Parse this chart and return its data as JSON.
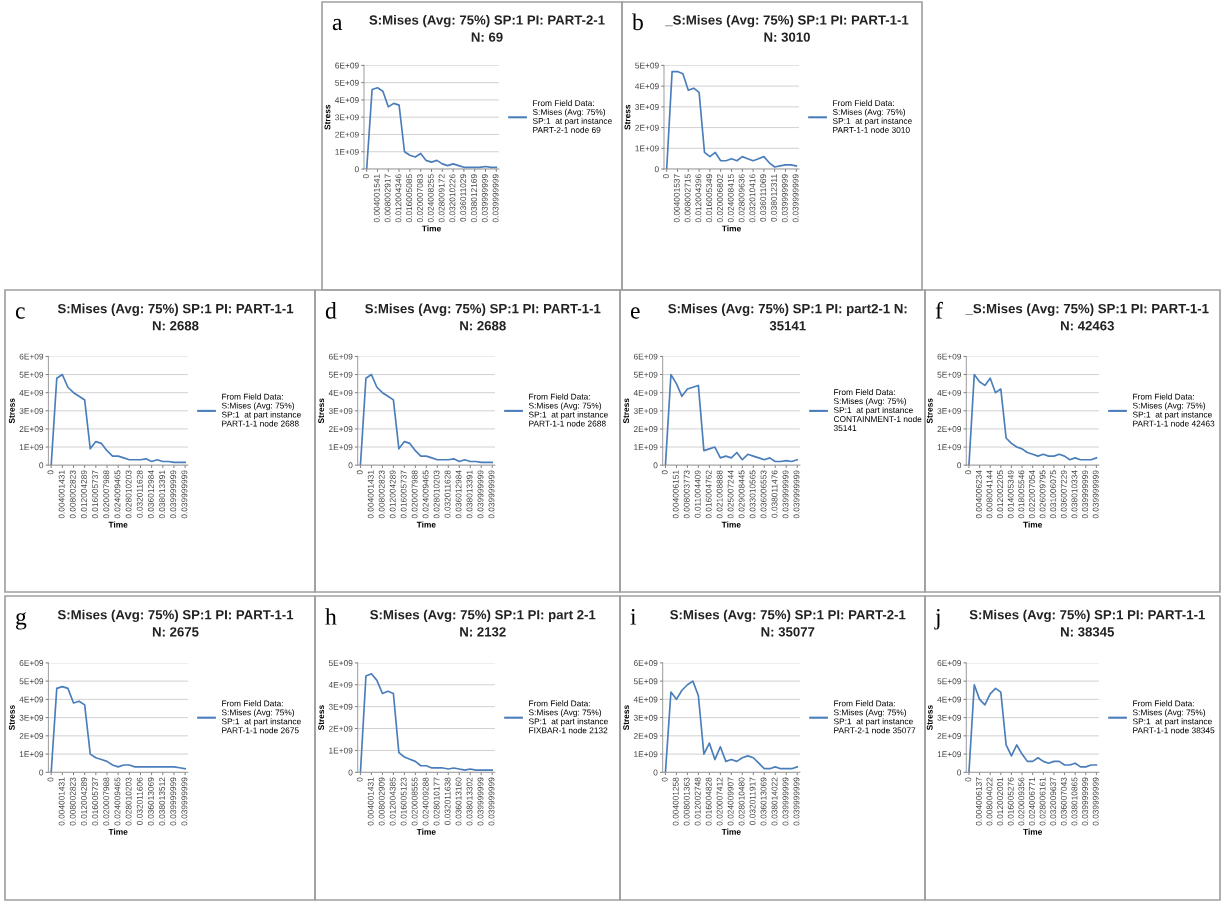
{
  "chart_data": [
    {
      "type": "line",
      "title": "S:Mises (Avg: 75%) SP:1 PI: PART-2-1\nN: 69",
      "xlabel": "Time",
      "ylabel": "Stress",
      "annotations": [
        "a"
      ],
      "grid": "y",
      "legend": "right",
      "marker": "none",
      "line_style": "solid",
      "ylim": [
        0,
        6000000000.0
      ],
      "yticks": [
        {
          "value": 0,
          "label": "0"
        },
        {
          "value": 1000000000.0,
          "label": "1E+09"
        },
        {
          "value": 2000000000.0,
          "label": "2E+09"
        },
        {
          "value": 3000000000.0,
          "label": "3E+09"
        },
        {
          "value": 4000000000.0,
          "label": "4E+09"
        },
        {
          "value": 5000000000.0,
          "label": "5E+09"
        },
        {
          "value": 6000000000.0,
          "label": "6E+09"
        }
      ],
      "categories": [
        "0",
        null,
        "0.004001541",
        null,
        "0.008002917",
        null,
        "0.012004346",
        null,
        "0.016005085",
        null,
        "0.020007083",
        null,
        "0.024008255",
        null,
        "0.028009172",
        null,
        "0.032010226",
        null,
        "0.036011029",
        null,
        "0.038012169",
        null,
        "0.039999999",
        null,
        "0.039999999"
      ],
      "series": [
        {
          "name": "From Field Data:\nS:Mises (Avg: 75%)\nSP:1  at part instance\nPART-2-1 node 69",
          "color": "#4a7ebb",
          "values": [
            0,
            4600000000.0,
            4700000000.0,
            4500000000.0,
            3600000000.0,
            3800000000.0,
            3700000000.0,
            1000000000.0,
            800000000.0,
            700000000.0,
            900000000.0,
            500000000.0,
            400000000.0,
            500000000.0,
            300000000.0,
            200000000.0,
            300000000.0,
            200000000.0,
            100000000.0,
            100000000.0,
            100000000.0,
            100000000.0,
            150000000.0,
            100000000.0,
            100000000.0
          ]
        }
      ]
    },
    {
      "type": "line",
      "title": "_S:Mises (Avg: 75%) SP:1 PI: PART-1-1\nN: 3010",
      "xlabel": "Time",
      "ylabel": "Stress",
      "annotations": [
        "b"
      ],
      "grid": "y",
      "legend": "right",
      "marker": "none",
      "line_style": "solid",
      "ylim": [
        0,
        5000000000.0
      ],
      "yticks": [
        {
          "value": 0,
          "label": "0"
        },
        {
          "value": 1000000000.0,
          "label": "1E+09"
        },
        {
          "value": 2000000000.0,
          "label": "2E+09"
        },
        {
          "value": 3000000000.0,
          "label": "3E+09"
        },
        {
          "value": 4000000000.0,
          "label": "4E+09"
        },
        {
          "value": 5000000000.0,
          "label": "5E+09"
        }
      ],
      "categories": [
        "0",
        null,
        "0.004001537",
        null,
        "0.008002715",
        null,
        "0.012004396",
        null,
        "0.016005349",
        null,
        "0.020006802",
        null,
        "0.024008415",
        null,
        "0.028009636",
        null,
        "0.032010416",
        null,
        "0.036011069",
        null,
        "0.038012311",
        null,
        "0.039999999",
        null,
        "0.039999999"
      ],
      "series": [
        {
          "name": "From Field Data:\nS:Mises (Avg: 75%)\nSP:1  at part instance\nPART-1-1 node 3010",
          "color": "#4a7ebb",
          "values": [
            0,
            4700000000.0,
            4700000000.0,
            4600000000.0,
            3800000000.0,
            3900000000.0,
            3700000000.0,
            800000000.0,
            600000000.0,
            800000000.0,
            400000000.0,
            400000000.0,
            500000000.0,
            400000000.0,
            600000000.0,
            500000000.0,
            400000000.0,
            500000000.0,
            600000000.0,
            300000000.0,
            100000000.0,
            150000000.0,
            200000000.0,
            200000000.0,
            150000000.0
          ]
        }
      ]
    },
    {
      "type": "line",
      "title": "S:Mises (Avg: 75%) SP:1 PI: PART-1-1\nN: 2688",
      "xlabel": "Time",
      "ylabel": "Stress",
      "annotations": [
        "c"
      ],
      "grid": "y",
      "legend": "right",
      "marker": "none",
      "line_style": "solid",
      "ylim": [
        0,
        6000000000.0
      ],
      "yticks": [
        {
          "value": 0,
          "label": "0"
        },
        {
          "value": 1000000000.0,
          "label": "1E+09"
        },
        {
          "value": 2000000000.0,
          "label": "2E+09"
        },
        {
          "value": 3000000000.0,
          "label": "3E+09"
        },
        {
          "value": 4000000000.0,
          "label": "4E+09"
        },
        {
          "value": 5000000000.0,
          "label": "5E+09"
        },
        {
          "value": 6000000000.0,
          "label": "6E+09"
        }
      ],
      "categories": [
        "0",
        null,
        "0.004001431",
        null,
        "0.008002823",
        null,
        "0.012004289",
        null,
        "0.016005737",
        null,
        "0.020007988",
        null,
        "0.024009465",
        null,
        "0.028010203",
        null,
        "0.032011628",
        null,
        "0.036012984",
        null,
        "0.038013391",
        null,
        "0.039999999",
        null,
        "0.039999999"
      ],
      "series": [
        {
          "name": "From Field Data:\nS:Mises (Avg: 75%)\nSP:1  at part instance\nPART-1-1 node 2688",
          "color": "#4a7ebb",
          "values": [
            0,
            4800000000.0,
            5000000000.0,
            4300000000.0,
            4000000000.0,
            3800000000.0,
            3600000000.0,
            900000000.0,
            1300000000.0,
            1200000000.0,
            800000000.0,
            500000000.0,
            500000000.0,
            400000000.0,
            300000000.0,
            300000000.0,
            300000000.0,
            350000000.0,
            200000000.0,
            300000000.0,
            200000000.0,
            200000000.0,
            150000000.0,
            150000000.0,
            150000000.0
          ]
        }
      ]
    },
    {
      "type": "line",
      "title": "S:Mises (Avg: 75%) SP:1 PI: PART-1-1\nN: 2688",
      "xlabel": "Time",
      "ylabel": "Stress",
      "annotations": [
        "d"
      ],
      "grid": "y",
      "legend": "right",
      "marker": "none",
      "line_style": "solid",
      "ylim": [
        0,
        6000000000.0
      ],
      "yticks": [
        {
          "value": 0,
          "label": "0"
        },
        {
          "value": 1000000000.0,
          "label": "1E+09"
        },
        {
          "value": 2000000000.0,
          "label": "2E+09"
        },
        {
          "value": 3000000000.0,
          "label": "3E+09"
        },
        {
          "value": 4000000000.0,
          "label": "4E+09"
        },
        {
          "value": 5000000000.0,
          "label": "5E+09"
        },
        {
          "value": 6000000000.0,
          "label": "6E+09"
        }
      ],
      "categories": [
        "0",
        null,
        "0.004001431",
        null,
        "0.008002823",
        null,
        "0.012004289",
        null,
        "0.016005737",
        null,
        "0.020007988",
        null,
        "0.024009465",
        null,
        "0.028010203",
        null,
        "0.032011628",
        null,
        "0.036012984",
        null,
        "0.038013391",
        null,
        "0.039999999",
        null,
        "0.039999999"
      ],
      "series": [
        {
          "name": "From Field Data:\nS:Mises (Avg: 75%)\nSP:1  at part instance\nPART-1-1 node 2688",
          "color": "#4a7ebb",
          "values": [
            0,
            4800000000.0,
            5000000000.0,
            4300000000.0,
            4000000000.0,
            3800000000.0,
            3600000000.0,
            900000000.0,
            1300000000.0,
            1200000000.0,
            800000000.0,
            500000000.0,
            500000000.0,
            400000000.0,
            300000000.0,
            300000000.0,
            300000000.0,
            350000000.0,
            200000000.0,
            300000000.0,
            200000000.0,
            200000000.0,
            150000000.0,
            150000000.0,
            150000000.0
          ]
        }
      ]
    },
    {
      "type": "line",
      "title": "S:Mises (Avg: 75%) SP:1 PI: part2-1 N:\n35141",
      "xlabel": "Time",
      "ylabel": "Stress",
      "annotations": [
        "e"
      ],
      "grid": "y",
      "legend": "right",
      "marker": "none",
      "line_style": "solid",
      "ylim": [
        0,
        6000000000.0
      ],
      "yticks": [
        {
          "value": 0,
          "label": "0"
        },
        {
          "value": 1000000000.0,
          "label": "1E+09"
        },
        {
          "value": 2000000000.0,
          "label": "2E+09"
        },
        {
          "value": 3000000000.0,
          "label": "3E+09"
        },
        {
          "value": 4000000000.0,
          "label": "4E+09"
        },
        {
          "value": 5000000000.0,
          "label": "5E+09"
        },
        {
          "value": 6000000000.0,
          "label": "6E+09"
        }
      ],
      "categories": [
        "0",
        null,
        "0.004006151",
        null,
        "0.008003773",
        null,
        "0.011004409",
        null,
        "0.016004762",
        null,
        "0.021008888",
        null,
        "0.025007244",
        null,
        "0.029008445",
        null,
        "0.033010565",
        null,
        "0.036006553",
        null,
        "0.038011476",
        null,
        "0.039999999",
        null,
        "0.039999999"
      ],
      "series": [
        {
          "name": "From Field Data:\nS:Mises (Avg: 75%)\nSP:1  at part instance\nCONTAINMENT-1 node\n35141",
          "color": "#4a7ebb",
          "values": [
            0,
            5000000000.0,
            4500000000.0,
            3800000000.0,
            4200000000.0,
            4300000000.0,
            4400000000.0,
            800000000.0,
            900000000.0,
            1000000000.0,
            400000000.0,
            500000000.0,
            400000000.0,
            700000000.0,
            300000000.0,
            600000000.0,
            500000000.0,
            400000000.0,
            300000000.0,
            400000000.0,
            200000000.0,
            200000000.0,
            250000000.0,
            200000000.0,
            300000000.0
          ]
        }
      ]
    },
    {
      "type": "line",
      "title": "_S:Mises (Avg: 75%) SP:1 PI: PART-1-1\nN: 42463",
      "xlabel": "Time",
      "ylabel": "Stress",
      "annotations": [
        "f"
      ],
      "grid": "y",
      "legend": "right",
      "marker": "none",
      "line_style": "solid",
      "ylim": [
        0,
        6000000000.0
      ],
      "yticks": [
        {
          "value": 0,
          "label": "0"
        },
        {
          "value": 1000000000.0,
          "label": "1E+09"
        },
        {
          "value": 2000000000.0,
          "label": "2E+09"
        },
        {
          "value": 3000000000.0,
          "label": "3E+09"
        },
        {
          "value": 4000000000.0,
          "label": "4E+09"
        },
        {
          "value": 5000000000.0,
          "label": "5E+09"
        },
        {
          "value": 6000000000.0,
          "label": "6E+09"
        }
      ],
      "categories": [
        "0",
        null,
        "0.004006234",
        null,
        "0.008004144",
        null,
        "0.012002205",
        null,
        "0.014005349",
        null,
        "0.018005546",
        null,
        "0.022007054",
        null,
        "0.026009795",
        null,
        "0.031006075",
        null,
        "0.036007229",
        null,
        "0.038010334",
        null,
        "0.039999999",
        null,
        "0.039999999"
      ],
      "series": [
        {
          "name": "From Field Data:\nS:Mises (Avg: 75%)\nSP:1  at part instance\nPART-1-1 node 42463",
          "color": "#4a7ebb",
          "values": [
            0,
            5000000000.0,
            4600000000.0,
            4400000000.0,
            4800000000.0,
            4000000000.0,
            4200000000.0,
            1500000000.0,
            1200000000.0,
            1000000000.0,
            900000000.0,
            700000000.0,
            600000000.0,
            500000000.0,
            600000000.0,
            500000000.0,
            500000000.0,
            600000000.0,
            500000000.0,
            300000000.0,
            400000000.0,
            300000000.0,
            300000000.0,
            300000000.0,
            400000000.0
          ]
        }
      ]
    },
    {
      "type": "line",
      "title": "S:Mises (Avg: 75%) SP:1 PI: PART-1-1\nN: 2675",
      "xlabel": "Time",
      "ylabel": "Stress",
      "annotations": [
        "g"
      ],
      "grid": "y",
      "legend": "right",
      "marker": "none",
      "line_style": "solid",
      "ylim": [
        0,
        6000000000.0
      ],
      "yticks": [
        {
          "value": 0,
          "label": "0"
        },
        {
          "value": 1000000000.0,
          "label": "1E+09"
        },
        {
          "value": 2000000000.0,
          "label": "2E+09"
        },
        {
          "value": 3000000000.0,
          "label": "3E+09"
        },
        {
          "value": 4000000000.0,
          "label": "4E+09"
        },
        {
          "value": 5000000000.0,
          "label": "5E+09"
        },
        {
          "value": 6000000000.0,
          "label": "6E+09"
        }
      ],
      "categories": [
        "0",
        null,
        "0.004001431",
        null,
        "0.008002823",
        null,
        "0.012004289",
        null,
        "0.016005737",
        null,
        "0.020007988",
        null,
        "0.024009465",
        null,
        "0.028010203",
        null,
        "0.032011606",
        null,
        "0.036013069",
        null,
        "0.038013512",
        null,
        "0.039999999",
        null,
        "0.039999999"
      ],
      "series": [
        {
          "name": "From Field Data:\nS:Mises (Avg: 75%)\nSP:1  at part instance\nPART-1-1 node 2675",
          "color": "#4a7ebb",
          "values": [
            0,
            4600000000.0,
            4700000000.0,
            4600000000.0,
            3800000000.0,
            3900000000.0,
            3700000000.0,
            1000000000.0,
            800000000.0,
            700000000.0,
            600000000.0,
            400000000.0,
            300000000.0,
            400000000.0,
            400000000.0,
            300000000.0,
            300000000.0,
            300000000.0,
            300000000.0,
            300000000.0,
            300000000.0,
            300000000.0,
            300000000.0,
            250000000.0,
            200000000.0
          ]
        }
      ]
    },
    {
      "type": "line",
      "title": "S:Mises (Avg: 75%) SP:1 PI: part 2-1\nN: 2132",
      "xlabel": "Time",
      "ylabel": "Stress",
      "annotations": [
        "h"
      ],
      "grid": "y",
      "legend": "right",
      "marker": "none",
      "line_style": "solid",
      "ylim": [
        0,
        5000000000.0
      ],
      "yticks": [
        {
          "value": 0,
          "label": "0"
        },
        {
          "value": 1000000000.0,
          "label": "1E+09"
        },
        {
          "value": 2000000000.0,
          "label": "2E+09"
        },
        {
          "value": 3000000000.0,
          "label": "3E+09"
        },
        {
          "value": 4000000000.0,
          "label": "4E+09"
        },
        {
          "value": 5000000000.0,
          "label": "5E+09"
        }
      ],
      "categories": [
        "0",
        null,
        "0.004001431",
        null,
        "0.008002909",
        null,
        "0.012004385",
        null,
        "0.016005123",
        null,
        "0.020008555",
        null,
        "0.024009288",
        null,
        "0.028010177",
        null,
        "0.032011638",
        null,
        "0.036013160",
        null,
        "0.038013302",
        null,
        "0.039999999",
        null,
        "0.039999999"
      ],
      "series": [
        {
          "name": "From Field Data:\nS:Mises (Avg: 75%)\nSP:1  at part instance\nFIXBAR-1 node 2132",
          "color": "#4a7ebb",
          "values": [
            0,
            4400000000.0,
            4500000000.0,
            4200000000.0,
            3600000000.0,
            3700000000.0,
            3600000000.0,
            900000000.0,
            700000000.0,
            600000000.0,
            500000000.0,
            300000000.0,
            300000000.0,
            200000000.0,
            200000000.0,
            200000000.0,
            150000000.0,
            200000000.0,
            150000000.0,
            100000000.0,
            150000000.0,
            100000000.0,
            100000000.0,
            100000000.0,
            100000000.0
          ]
        }
      ]
    },
    {
      "type": "line",
      "title": "S:Mises (Avg: 75%) SP:1 PI: PART-2-1\nN: 35077",
      "xlabel": "Time",
      "ylabel": "Stress",
      "annotations": [
        "i"
      ],
      "grid": "y",
      "legend": "right",
      "marker": "none",
      "line_style": "solid",
      "ylim": [
        0,
        6000000000.0
      ],
      "yticks": [
        {
          "value": 0,
          "label": "0"
        },
        {
          "value": 1000000000.0,
          "label": "1E+09"
        },
        {
          "value": 2000000000.0,
          "label": "2E+09"
        },
        {
          "value": 3000000000.0,
          "label": "3E+09"
        },
        {
          "value": 4000000000.0,
          "label": "4E+09"
        },
        {
          "value": 5000000000.0,
          "label": "5E+09"
        },
        {
          "value": 6000000000.0,
          "label": "6E+09"
        }
      ],
      "categories": [
        "0",
        null,
        "0.004001258",
        null,
        "0.008001363",
        null,
        "0.012002748",
        null,
        "0.016004828",
        null,
        "0.020007412",
        null,
        "0.024009907",
        null,
        "0.028010480",
        null,
        "0.032011917",
        null,
        "0.036013069",
        null,
        "0.038014022",
        null,
        "0.039999999",
        null,
        "0.039999999"
      ],
      "series": [
        {
          "name": "From Field Data:\nS:Mises (Avg: 75%)\nSP:1  at part instance\nPART-2-1 node 35077",
          "color": "#4a7ebb",
          "values": [
            0,
            4400000000.0,
            4000000000.0,
            4500000000.0,
            4800000000.0,
            5000000000.0,
            4200000000.0,
            1000000000.0,
            1600000000.0,
            700000000.0,
            1400000000.0,
            600000000.0,
            700000000.0,
            600000000.0,
            800000000.0,
            900000000.0,
            800000000.0,
            500000000.0,
            200000000.0,
            200000000.0,
            300000000.0,
            200000000.0,
            200000000.0,
            200000000.0,
            300000000.0
          ]
        }
      ]
    },
    {
      "type": "line",
      "title": "S:Mises (Avg: 75%) SP:1 PI: PART-1-1\nN: 38345",
      "xlabel": "Time",
      "ylabel": "Stress",
      "annotations": [
        "j"
      ],
      "grid": "y",
      "legend": "right",
      "marker": "none",
      "line_style": "solid",
      "ylim": [
        0,
        6000000000.0
      ],
      "yticks": [
        {
          "value": 0,
          "label": "0"
        },
        {
          "value": 1000000000.0,
          "label": "1E+09"
        },
        {
          "value": 2000000000.0,
          "label": "2E+09"
        },
        {
          "value": 3000000000.0,
          "label": "3E+09"
        },
        {
          "value": 4000000000.0,
          "label": "4E+09"
        },
        {
          "value": 5000000000.0,
          "label": "5E+09"
        },
        {
          "value": 6000000000.0,
          "label": "6E+09"
        }
      ],
      "categories": [
        "0",
        null,
        "0.004006137",
        null,
        "0.008004022",
        null,
        "0.012002001",
        null,
        "0.016005276",
        null,
        "0.020009356",
        null,
        "0.024006771",
        null,
        "0.028006161",
        null,
        "0.032009637",
        null,
        "0.036007043",
        null,
        "0.038010865",
        null,
        "0.039999999",
        null,
        "0.039999999"
      ],
      "series": [
        {
          "name": "From Field Data:\nS:Mises (Avg: 75%)\nSP:1  at part instance\nPART-1-1 node 38345",
          "color": "#4a7ebb",
          "values": [
            0,
            4800000000.0,
            4000000000.0,
            3700000000.0,
            4300000000.0,
            4600000000.0,
            4400000000.0,
            1500000000.0,
            900000000.0,
            1500000000.0,
            1000000000.0,
            600000000.0,
            600000000.0,
            800000000.0,
            600000000.0,
            500000000.0,
            600000000.0,
            600000000.0,
            400000000.0,
            400000000.0,
            500000000.0,
            300000000.0,
            300000000.0,
            400000000.0,
            400000000.0
          ]
        }
      ]
    }
  ]
}
